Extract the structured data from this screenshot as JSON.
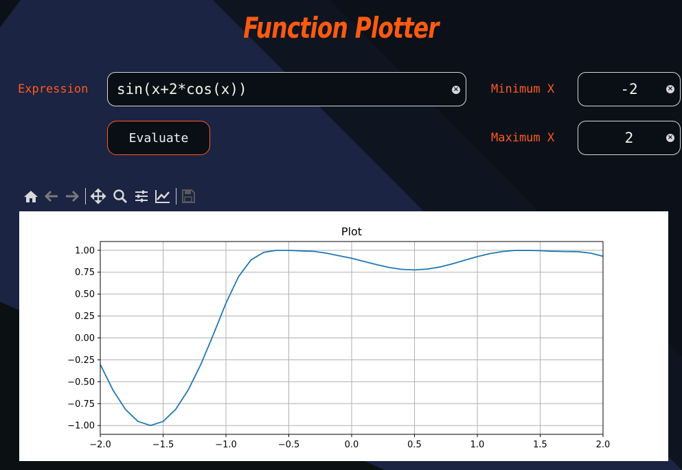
{
  "app": {
    "title": "Function Plotter"
  },
  "form": {
    "expression_label": "Expression",
    "expression_value": "sin(x+2*cos(x))",
    "min_label": "Minimum X",
    "min_value": "-2",
    "max_label": "Maximum X",
    "max_value": "2",
    "evaluate_label": "Evaluate"
  },
  "toolbar": {
    "icons": [
      "home-icon",
      "back-arrow-icon",
      "forward-arrow-icon",
      "pan-icon",
      "zoom-icon",
      "configure-subplots-icon",
      "edit-axis-icon",
      "save-icon"
    ]
  },
  "colors": {
    "accent": "#ff5a1f",
    "background": "#0a0f16",
    "line": "#1f77b4"
  },
  "chart_data": {
    "type": "line",
    "title": "Plot",
    "xlabel": "",
    "ylabel": "",
    "function": "sin(x+2*cos(x))",
    "xlim": [
      -2,
      2
    ],
    "ylim": [
      -1.1,
      1.1
    ],
    "xticks": [
      "−2.0",
      "−1.5",
      "−1.0",
      "−0.5",
      "0.0",
      "0.5",
      "1.0",
      "1.5",
      "2.0"
    ],
    "yticks": [
      "1.00",
      "0.75",
      "0.50",
      "0.25",
      "0.00",
      "−0.25",
      "−0.50",
      "−0.75",
      "−1.00"
    ],
    "grid": true,
    "x": [
      -2.0,
      -1.9,
      -1.8,
      -1.7,
      -1.6,
      -1.5,
      -1.4,
      -1.3,
      -1.2,
      -1.1,
      -1.0,
      -0.9,
      -0.8,
      -0.7,
      -0.6,
      -0.5,
      -0.4,
      -0.3,
      -0.2,
      -0.1,
      0.0,
      0.1,
      0.2,
      0.3,
      0.4,
      0.5,
      0.6,
      0.7,
      0.8,
      0.9,
      1.0,
      1.1,
      1.2,
      1.3,
      1.4,
      1.5,
      1.6,
      1.7,
      1.8,
      1.9,
      2.0
    ],
    "y": [
      -0.302,
      -0.593,
      -0.815,
      -0.953,
      -0.999,
      -0.953,
      -0.815,
      -0.593,
      -0.302,
      0.039,
      0.397,
      0.699,
      0.891,
      0.976,
      0.999,
      0.999,
      0.993,
      0.987,
      0.967,
      0.938,
      0.909,
      0.872,
      0.835,
      0.803,
      0.782,
      0.776,
      0.785,
      0.809,
      0.845,
      0.887,
      0.928,
      0.962,
      0.986,
      0.998,
      0.999,
      0.995,
      0.989,
      0.986,
      0.984,
      0.968,
      0.932
    ]
  }
}
